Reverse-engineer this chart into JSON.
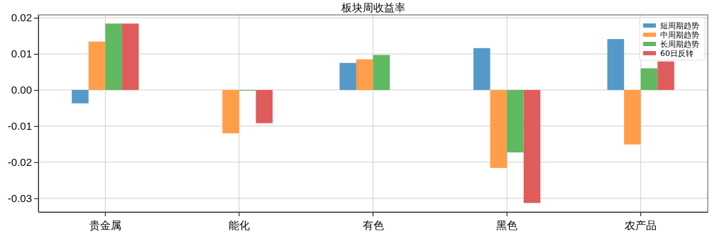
{
  "chart_data": {
    "type": "bar",
    "title": "板块周收益率",
    "categories": [
      "贵金属",
      "能化",
      "有色",
      "黑色",
      "农产品"
    ],
    "series": [
      {
        "name": "短周期趋势",
        "color": "#5599c8",
        "values": [
          -0.0037,
          null,
          0.0075,
          0.0116,
          0.0141
        ]
      },
      {
        "name": "中周期趋势",
        "color": "#ff9e4a",
        "values": [
          0.0134,
          -0.012,
          0.0085,
          -0.0216,
          -0.0151
        ]
      },
      {
        "name": "长周期趋势",
        "color": "#60b860",
        "values": [
          0.0184,
          -0.0002,
          0.0097,
          -0.0173,
          0.006
        ]
      },
      {
        "name": "60日反转",
        "color": "#e05c5c",
        "values": [
          0.0184,
          -0.0092,
          null,
          -0.0313,
          0.0079
        ]
      }
    ],
    "ylim": [
      -0.0338,
      0.0208
    ],
    "yticks": [
      {
        "value": -0.03,
        "label": "-0.03"
      },
      {
        "value": -0.02,
        "label": "-0.02"
      },
      {
        "value": -0.01,
        "label": "-0.01"
      },
      {
        "value": 0,
        "label": "0.00"
      },
      {
        "value": 0.01,
        "label": "0.01"
      },
      {
        "value": 0.02,
        "label": "0.02"
      }
    ],
    "grid": true,
    "legend": "top right"
  }
}
